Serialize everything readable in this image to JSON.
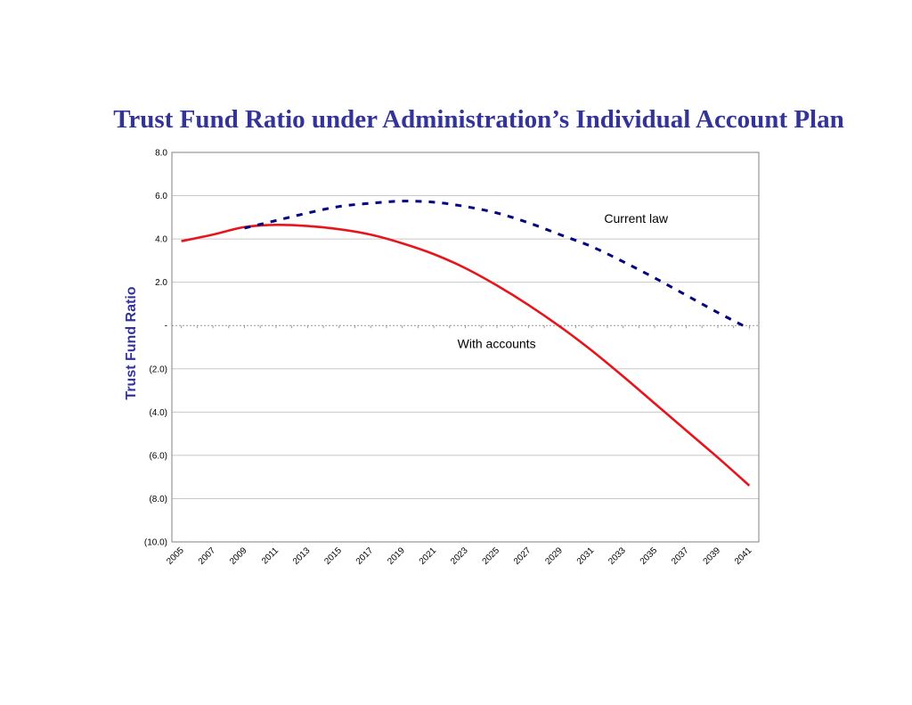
{
  "chart_data": {
    "type": "line",
    "title": "Trust Fund Ratio under Administration’s Individual Account Plan",
    "ylabel": "Trust Fund Ratio",
    "xlabel": "",
    "ylim": [
      -10,
      8
    ],
    "y_ticks": [
      {
        "value": 8,
        "label": "8.0"
      },
      {
        "value": 6,
        "label": "6.0"
      },
      {
        "value": 4,
        "label": "4.0"
      },
      {
        "value": 2,
        "label": "2.0"
      },
      {
        "value": 0,
        "label": "-"
      },
      {
        "value": -2,
        "label": "(2.0)"
      },
      {
        "value": -4,
        "label": "(4.0)"
      },
      {
        "value": -6,
        "label": "(6.0)"
      },
      {
        "value": -8,
        "label": "(8.0)"
      },
      {
        "value": -10,
        "label": "(10.0)"
      }
    ],
    "x_tick_labels": [
      "2005",
      "2007",
      "2009",
      "2011",
      "2013",
      "2015",
      "2017",
      "2019",
      "2021",
      "2023",
      "2025",
      "2027",
      "2029",
      "2031",
      "2033",
      "2035",
      "2037",
      "2039",
      "2041"
    ],
    "grid": true,
    "series": [
      {
        "name": "With accounts",
        "color": "#e8141c",
        "style": "solid",
        "x": [
          2005,
          2007,
          2009,
          2011,
          2013,
          2015,
          2017,
          2019,
          2021,
          2023,
          2025,
          2027,
          2029,
          2031,
          2033,
          2035,
          2037,
          2039,
          2041
        ],
        "values": [
          3.9,
          4.2,
          4.55,
          4.65,
          4.6,
          4.45,
          4.2,
          3.8,
          3.3,
          2.65,
          1.85,
          0.95,
          -0.05,
          -1.15,
          -2.35,
          -3.6,
          -4.85,
          -6.1,
          -7.4
        ]
      },
      {
        "name": "Current law",
        "color": "#000080",
        "style": "dashed",
        "x": [
          2009,
          2011,
          2013,
          2015,
          2017,
          2019,
          2021,
          2023,
          2025,
          2027,
          2029,
          2031,
          2033,
          2035,
          2037,
          2039,
          2041
        ],
        "values": [
          4.5,
          4.85,
          5.2,
          5.5,
          5.65,
          5.75,
          5.7,
          5.5,
          5.2,
          4.75,
          4.2,
          3.65,
          2.95,
          2.2,
          1.4,
          0.6,
          -0.15
        ]
      }
    ],
    "annotations": [
      {
        "text": "Current law",
        "x": 2031.8,
        "y": 4.75
      },
      {
        "text": "With accounts",
        "x": 2022.5,
        "y": -1.05
      }
    ]
  }
}
